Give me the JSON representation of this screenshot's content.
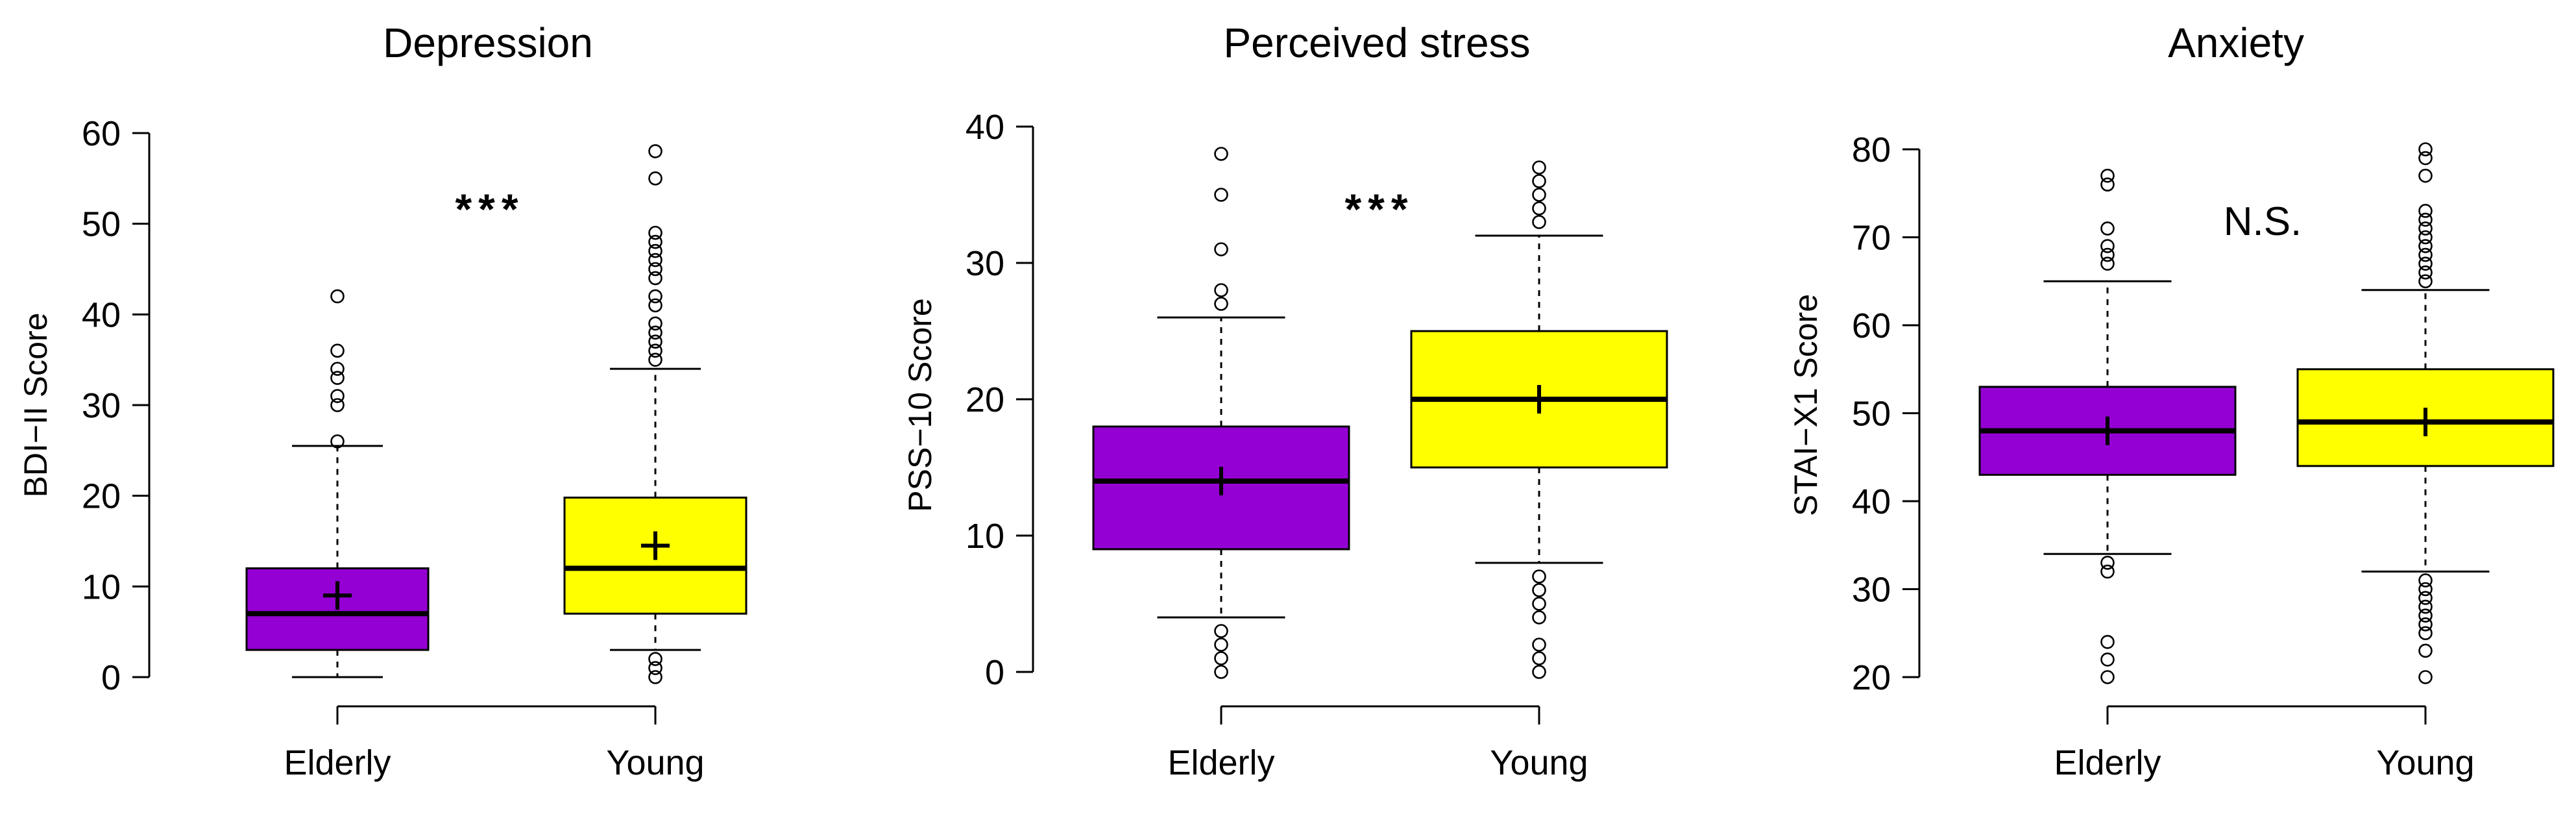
{
  "chart_data": [
    {
      "type": "boxplot",
      "title": "Depression",
      "ylabel": "BDI−II Score",
      "ylim": [
        0,
        60
      ],
      "yticks": [
        0,
        10,
        20,
        30,
        40,
        50,
        60
      ],
      "ytick_labels": [
        "0",
        "10",
        "20",
        "30",
        "40",
        "50",
        "60"
      ],
      "categories": [
        "Elderly",
        "Young"
      ],
      "significance": "***",
      "groups": [
        {
          "name": "Elderly",
          "color": "#9400D3",
          "whisker_low": 0,
          "q1": 3,
          "median": 7,
          "q3": 12,
          "whisker_high": 25.5,
          "mean": 9,
          "outliers": [
            26,
            30,
            31,
            33,
            34,
            36,
            42
          ]
        },
        {
          "name": "Young",
          "color": "#FFFF00",
          "whisker_low": 3,
          "q1": 7,
          "median": 12,
          "q3": 19.8,
          "whisker_high": 34,
          "mean": 14.5,
          "outliers": [
            0,
            1,
            2,
            35,
            36,
            37,
            38,
            39,
            41,
            42,
            44,
            45,
            46,
            47,
            48,
            49,
            55,
            58
          ]
        }
      ]
    },
    {
      "type": "boxplot",
      "title": "Perceived stress",
      "ylabel": "PSS−10 Score",
      "ylim": [
        0,
        40
      ],
      "yticks": [
        0,
        10,
        20,
        30,
        40
      ],
      "ytick_labels": [
        "0",
        "10",
        "20",
        "30",
        "40"
      ],
      "categories": [
        "Elderly",
        "Young"
      ],
      "significance": "***",
      "groups": [
        {
          "name": "Elderly",
          "color": "#9400D3",
          "whisker_low": 4,
          "q1": 9,
          "median": 14,
          "q3": 18,
          "whisker_high": 26,
          "mean": 14,
          "outliers": [
            0,
            1,
            2,
            3,
            27,
            28,
            31,
            35,
            38
          ]
        },
        {
          "name": "Young",
          "color": "#FFFF00",
          "whisker_low": 8,
          "q1": 15,
          "median": 20,
          "q3": 25,
          "whisker_high": 32,
          "mean": 20,
          "outliers": [
            0,
            1,
            2,
            4,
            5,
            6,
            7,
            33,
            34,
            35,
            36,
            37
          ]
        }
      ]
    },
    {
      "type": "boxplot",
      "title": "Anxiety",
      "ylabel": "STAI−X1 Score",
      "ylim": [
        20,
        80
      ],
      "yticks": [
        20,
        30,
        40,
        50,
        60,
        70,
        80
      ],
      "ytick_labels": [
        "20",
        "30",
        "40",
        "50",
        "60",
        "70",
        "80"
      ],
      "categories": [
        "Elderly",
        "Young"
      ],
      "significance": "N.S.",
      "groups": [
        {
          "name": "Elderly",
          "color": "#9400D3",
          "whisker_low": 34,
          "q1": 43,
          "median": 48,
          "q3": 53,
          "whisker_high": 65,
          "mean": 48,
          "outliers": [
            20,
            22,
            24,
            32,
            33,
            67,
            68,
            69,
            71,
            76,
            77
          ]
        },
        {
          "name": "Young",
          "color": "#FFFF00",
          "whisker_low": 32,
          "q1": 44,
          "median": 49,
          "q3": 55,
          "whisker_high": 64,
          "mean": 49,
          "outliers": [
            20,
            23,
            25,
            26,
            27,
            28,
            29,
            30,
            31,
            65,
            66,
            67,
            68,
            69,
            70,
            71,
            72,
            73,
            77,
            79,
            80
          ]
        }
      ]
    }
  ]
}
